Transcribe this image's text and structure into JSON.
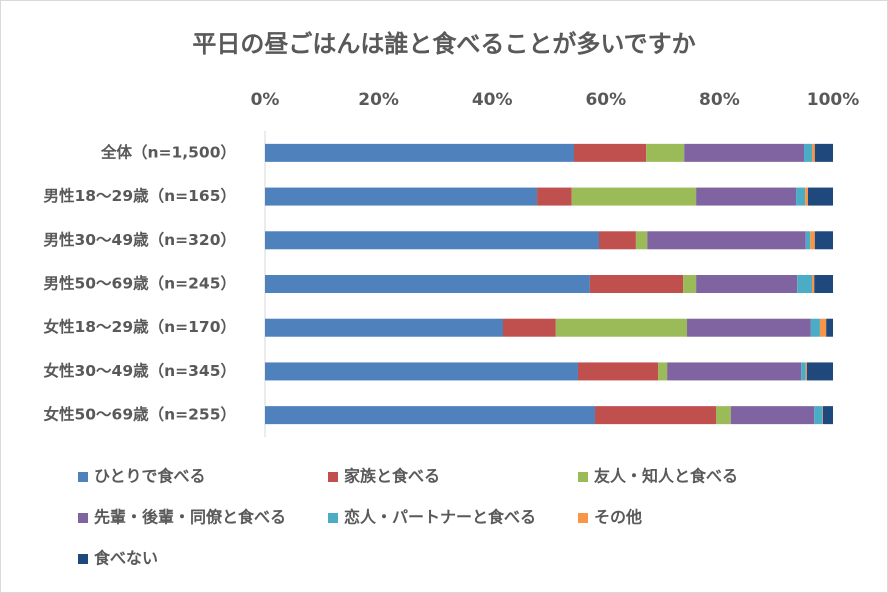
{
  "chart_data": {
    "type": "stacked-bar-horizontal",
    "title": "平日の昼ごはんは誰と食べることが多いですか",
    "categories": [
      "全体（n=1,500）",
      "男性18～29歳（n=165）",
      "男性30～49歳（n=320）",
      "男性50～69歳（n=245）",
      "女性18～29歳（n=170）",
      "女性30～49歳（n=345）",
      "女性50～69歳（n=255）"
    ],
    "series": [
      {
        "name": "ひとりで食べる",
        "color": "#4f81bd",
        "values": [
          54.4,
          47.9,
          58.8,
          57.2,
          41.9,
          55.1,
          58.1
        ]
      },
      {
        "name": "家族と食べる",
        "color": "#c0504d",
        "values": [
          12.7,
          6.1,
          6.5,
          16.4,
          9.3,
          14.1,
          21.3
        ]
      },
      {
        "name": "友人・知人と食べる",
        "color": "#9bbb59",
        "values": [
          6.7,
          21.9,
          2.0,
          2.3,
          23.1,
          1.6,
          2.6
        ]
      },
      {
        "name": "先輩・後輩・同僚と食べる",
        "color": "#8064a2",
        "values": [
          21.1,
          17.6,
          27.9,
          17.8,
          21.8,
          23.6,
          14.7
        ]
      },
      {
        "name": "恋人・パートナーと食べる",
        "color": "#4bacc6",
        "values": [
          1.4,
          1.6,
          0.8,
          2.6,
          1.6,
          0.8,
          1.4
        ]
      },
      {
        "name": "その他",
        "color": "#f79646",
        "values": [
          0.5,
          0.5,
          0.8,
          0.4,
          1.1,
          0.2,
          0.1
        ]
      },
      {
        "name": "食べない",
        "color": "#1f497d",
        "values": [
          3.2,
          4.4,
          3.2,
          3.3,
          1.2,
          4.6,
          1.8
        ]
      }
    ],
    "xlim": [
      0,
      100
    ],
    "xticks": [
      {
        "value": 0,
        "label": "0%"
      },
      {
        "value": 20,
        "label": "20%"
      },
      {
        "value": 40,
        "label": "40%"
      },
      {
        "value": 60,
        "label": "60%"
      },
      {
        "value": 80,
        "label": "80%"
      },
      {
        "value": 100,
        "label": "100%"
      }
    ],
    "grid": false,
    "legend": "bottom"
  }
}
